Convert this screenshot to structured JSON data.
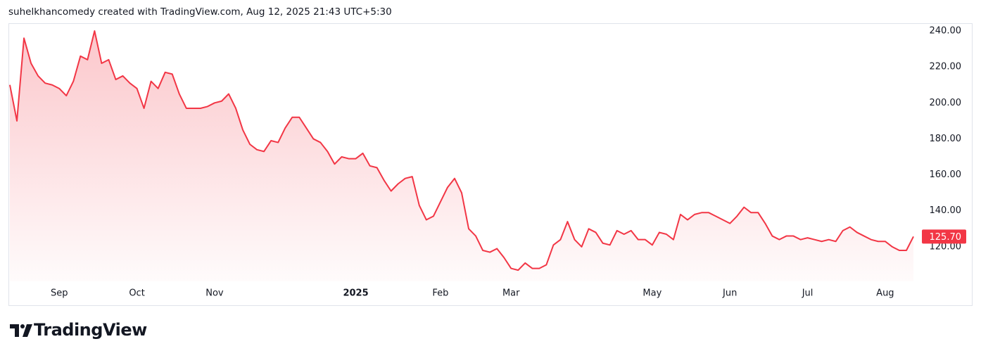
{
  "header": "suhelkhancomedy created with TradingView.com, Aug 12, 2025 21:43 UTC+5:30",
  "brand": "TradingView",
  "chart_data": {
    "type": "area",
    "categories": [
      null,
      null,
      null,
      null,
      null,
      null,
      null,
      "Sep",
      null,
      null,
      null,
      null,
      null,
      null,
      null,
      null,
      null,
      null,
      "Oct",
      null,
      null,
      null,
      null,
      null,
      null,
      null,
      null,
      null,
      null,
      "Nov",
      null,
      null,
      null,
      null,
      null,
      null,
      null,
      null,
      null,
      null,
      null,
      null,
      null,
      null,
      null,
      null,
      null,
      null,
      null,
      "2025",
      null,
      null,
      null,
      null,
      null,
      null,
      null,
      null,
      null,
      null,
      null,
      "Feb",
      null,
      null,
      null,
      null,
      null,
      null,
      null,
      null,
      null,
      "Mar",
      null,
      null,
      null,
      null,
      null,
      null,
      null,
      null,
      null,
      null,
      null,
      null,
      null,
      null,
      null,
      null,
      null,
      null,
      null,
      "May",
      null,
      null,
      null,
      null,
      null,
      null,
      null,
      null,
      null,
      null,
      "Jun",
      null,
      null,
      null,
      null,
      null,
      null,
      null,
      null,
      null,
      null,
      "Jul",
      null,
      null,
      null,
      null,
      null,
      null,
      null,
      null,
      null,
      null,
      "Aug",
      null,
      null,
      null,
      null
    ],
    "series": [
      {
        "color": "#f23645",
        "values": [
          210,
          190,
          236,
          222,
          215,
          211,
          210,
          208,
          204,
          212,
          226,
          224,
          240,
          222,
          224,
          213,
          215,
          211,
          208,
          197,
          212,
          208,
          217,
          216,
          205,
          197,
          197,
          197,
          198,
          200,
          201,
          205,
          197,
          185,
          177,
          174,
          173,
          179,
          178,
          186,
          192,
          192,
          186,
          180,
          178,
          173,
          166,
          170,
          169,
          169,
          172,
          165,
          164,
          157,
          151,
          155,
          158,
          159,
          143,
          135,
          137,
          145,
          153,
          158,
          150,
          130,
          126,
          118,
          117,
          119,
          114,
          108,
          107,
          111,
          108,
          108,
          110,
          121,
          124,
          134,
          124,
          120,
          130,
          128,
          122,
          121,
          129,
          127,
          129,
          124,
          124,
          121,
          128,
          127,
          124,
          138,
          135,
          138,
          139,
          139,
          137,
          135,
          133,
          137,
          142,
          139,
          139,
          133,
          126,
          124,
          126,
          126,
          124,
          125,
          124,
          123,
          124,
          123,
          129,
          131,
          128,
          126,
          124,
          123,
          123,
          120,
          118,
          118,
          125.7
        ]
      }
    ],
    "last_price": {
      "value": 125.7,
      "label": "125.70"
    },
    "ylim": [
      100.8,
      244.3
    ],
    "yticks": [
      {
        "value": 120,
        "label": "120.00"
      },
      {
        "value": 140,
        "label": "140.00"
      },
      {
        "value": 160,
        "label": "160.00"
      },
      {
        "value": 180,
        "label": "180.00"
      },
      {
        "value": 200,
        "label": "200.00"
      },
      {
        "value": 220,
        "label": "220.00"
      },
      {
        "value": 240,
        "label": "240.00"
      }
    ],
    "grid": false
  }
}
